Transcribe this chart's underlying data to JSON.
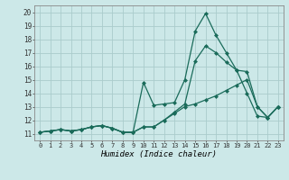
{
  "xlabel": "Humidex (Indice chaleur)",
  "bg_color": "#cce8e8",
  "grid_color": "#aacccc",
  "line_color": "#1a6b5a",
  "xlim": [
    -0.5,
    23.5
  ],
  "ylim": [
    10.5,
    20.5
  ],
  "xticks": [
    0,
    1,
    2,
    3,
    4,
    5,
    6,
    7,
    8,
    9,
    10,
    11,
    12,
    13,
    14,
    15,
    16,
    17,
    18,
    19,
    20,
    21,
    22,
    23
  ],
  "yticks": [
    11,
    12,
    13,
    14,
    15,
    16,
    17,
    18,
    19,
    20
  ],
  "series": [
    [
      11.1,
      11.2,
      11.3,
      11.2,
      11.3,
      11.5,
      11.6,
      11.4,
      11.1,
      11.1,
      14.8,
      13.1,
      13.2,
      13.3,
      15.0,
      18.6,
      19.9,
      18.3,
      17.0,
      15.7,
      14.0,
      12.3,
      12.2,
      13.0
    ],
    [
      11.1,
      11.2,
      11.3,
      11.2,
      11.3,
      11.5,
      11.6,
      11.4,
      11.1,
      11.1,
      11.5,
      11.5,
      12.0,
      12.6,
      13.2,
      16.4,
      17.5,
      17.0,
      16.3,
      15.7,
      15.6,
      13.0,
      12.2,
      13.0
    ],
    [
      11.1,
      11.2,
      11.3,
      11.2,
      11.3,
      11.5,
      11.6,
      11.4,
      11.1,
      11.1,
      11.5,
      11.5,
      12.0,
      12.5,
      13.0,
      13.2,
      13.5,
      13.8,
      14.2,
      14.6,
      15.0,
      13.0,
      12.2,
      13.0
    ]
  ]
}
